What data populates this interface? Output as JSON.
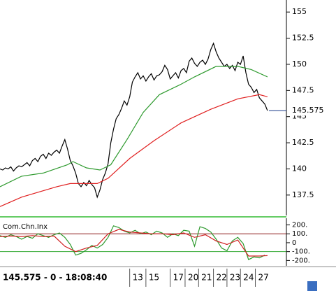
{
  "chart_data": [
    {
      "type": "line",
      "xlim": [
        0,
        106
      ],
      "ylim": [
        135.55,
        156.15
      ],
      "yticks": [
        155,
        152.5,
        150,
        147.5,
        145,
        142.5,
        140,
        137.5
      ],
      "xticks": [
        {
          "value": 48,
          "label": "13"
        },
        {
          "value": 54,
          "label": "15"
        },
        {
          "value": 63,
          "label": "17"
        },
        {
          "value": 68.5,
          "label": "20"
        },
        {
          "value": 73.5,
          "label": "21"
        },
        {
          "value": 79,
          "label": "22"
        },
        {
          "value": 84,
          "label": "23"
        },
        {
          "value": 89,
          "label": "24"
        },
        {
          "value": 94.5,
          "label": "27"
        }
      ],
      "last_price": 145.575,
      "series": [
        {
          "color": "#000000",
          "x": [
            0,
            1,
            2,
            3,
            4,
            5,
            6,
            7,
            8,
            9,
            10,
            11,
            12,
            13,
            14,
            15,
            16,
            17,
            18,
            19,
            20,
            21,
            22,
            23,
            24,
            25,
            26,
            27,
            28,
            29,
            30,
            31,
            32,
            33,
            34,
            35,
            36,
            37,
            38,
            39,
            40,
            41,
            42,
            43,
            44,
            45,
            46,
            47,
            48,
            49,
            50,
            51,
            52,
            53,
            54,
            55,
            56,
            57,
            58,
            59,
            60,
            61,
            62,
            63,
            64,
            65,
            66,
            67,
            68,
            69,
            70,
            71,
            72,
            73,
            74,
            75,
            76,
            77,
            78,
            79,
            80,
            81,
            82,
            83,
            84,
            85,
            86,
            87,
            88,
            89,
            90,
            91,
            92,
            93,
            94,
            95,
            96,
            97,
            98,
            99
          ],
          "values": [
            140.0,
            139.9,
            140.1,
            140.0,
            140.2,
            139.8,
            140.1,
            140.3,
            140.2,
            140.4,
            140.6,
            140.3,
            140.8,
            141.0,
            140.7,
            141.2,
            141.4,
            141.0,
            141.5,
            141.3,
            141.6,
            141.8,
            141.5,
            142.2,
            142.8,
            141.9,
            140.8,
            140.3,
            139.6,
            138.6,
            138.3,
            138.7,
            138.4,
            138.9,
            138.5,
            138.2,
            137.3,
            138.0,
            139.0,
            139.6,
            140.5,
            142.5,
            143.8,
            144.8,
            145.2,
            145.8,
            146.5,
            146.1,
            146.9,
            148.3,
            148.8,
            149.2,
            148.6,
            148.9,
            148.4,
            148.8,
            149.1,
            148.5,
            148.9,
            149.0,
            149.3,
            149.9,
            149.5,
            148.6,
            148.9,
            149.2,
            148.7,
            149.4,
            149.6,
            149.2,
            150.3,
            150.6,
            150.1,
            149.8,
            150.2,
            150.4,
            150.0,
            150.5,
            151.4,
            152.0,
            151.2,
            150.6,
            150.2,
            149.8,
            150.0,
            149.6,
            149.9,
            149.4,
            150.2,
            150.0,
            150.8,
            149.2,
            148.1,
            147.8,
            147.3,
            147.6,
            146.8,
            146.5,
            146.2,
            145.575
          ]
        },
        {
          "color": "#2e9a2e",
          "x": [
            0,
            8,
            16,
            25,
            27,
            32,
            37,
            41,
            47,
            53,
            59,
            67,
            72,
            80,
            88,
            93,
            99
          ],
          "values": [
            138.3,
            139.3,
            139.6,
            140.4,
            140.7,
            140.1,
            139.9,
            140.4,
            142.8,
            145.4,
            147.1,
            148.1,
            148.8,
            149.8,
            149.8,
            149.5,
            148.8
          ]
        },
        {
          "color": "#e02020",
          "x": [
            0,
            8,
            21,
            26,
            36,
            40,
            48,
            57,
            67,
            78,
            88,
            96,
            99
          ],
          "values": [
            136.4,
            137.3,
            138.3,
            138.6,
            138.6,
            139.1,
            141.0,
            142.7,
            144.4,
            145.7,
            146.7,
            147.1,
            146.9
          ]
        }
      ]
    },
    {
      "type": "line",
      "title": "Com.Chn.Inx",
      "xlim": [
        0,
        106
      ],
      "ylim": [
        -260,
        275
      ],
      "yticks": [
        {
          "value": 200,
          "label": "200."
        },
        {
          "value": 100,
          "label": "100."
        },
        0,
        {
          "value": -100,
          "label": "-100."
        },
        {
          "value": -200,
          "label": "-200."
        }
      ],
      "levels": [
        {
          "value": 100,
          "color": "#8b1a1a"
        },
        {
          "value": -100,
          "color": "#33aa33"
        }
      ],
      "series": [
        {
          "color": "#2e9a2e",
          "x": [
            0,
            2,
            4,
            6,
            8,
            10,
            12,
            14,
            16,
            18,
            20,
            22,
            24,
            26,
            28,
            30,
            32,
            34,
            36,
            38,
            40,
            42,
            44,
            46,
            48,
            50,
            52,
            54,
            56,
            58,
            60,
            62,
            64,
            66,
            68,
            70,
            72,
            74,
            76,
            78,
            80,
            82,
            84,
            86,
            88,
            90,
            92,
            94,
            96,
            98
          ],
          "values": [
            80,
            60,
            90,
            70,
            40,
            70,
            50,
            100,
            80,
            60,
            90,
            110,
            60,
            -20,
            -140,
            -120,
            -80,
            -30,
            -60,
            -20,
            60,
            190,
            170,
            130,
            110,
            140,
            100,
            120,
            90,
            130,
            110,
            60,
            100,
            80,
            140,
            130,
            -40,
            180,
            160,
            120,
            40,
            -60,
            -90,
            20,
            60,
            -10,
            -190,
            -160,
            -170,
            -140
          ]
        },
        {
          "color": "#d02020",
          "x": [
            0,
            4,
            8,
            12,
            16,
            20,
            24,
            28,
            32,
            36,
            40,
            44,
            48,
            52,
            56,
            60,
            64,
            68,
            72,
            76,
            80,
            84,
            88,
            92,
            96,
            99
          ],
          "values": [
            70,
            75,
            70,
            80,
            70,
            75,
            -40,
            -100,
            -60,
            -30,
            100,
            150,
            120,
            110,
            100,
            100,
            90,
            110,
            60,
            90,
            20,
            -20,
            30,
            -150,
            -150,
            -145
          ]
        }
      ]
    }
  ],
  "status": "145.575 - 0 - 18:08:40"
}
